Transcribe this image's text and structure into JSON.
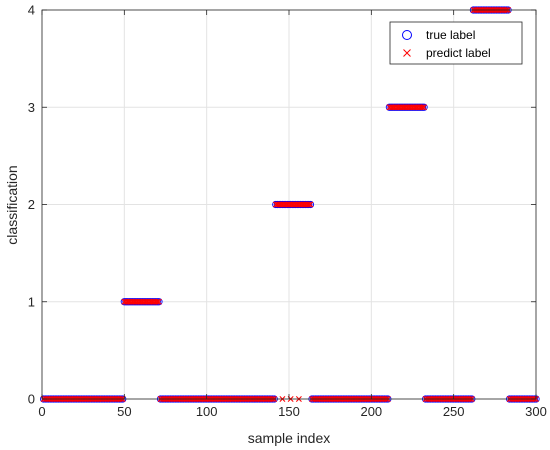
{
  "chart_data": {
    "type": "scatter",
    "xlabel": "sample index",
    "ylabel": "classification",
    "xlim": [
      0,
      300
    ],
    "ylim": [
      0,
      4
    ],
    "x_ticks": [
      0,
      50,
      100,
      150,
      200,
      250,
      300
    ],
    "y_ticks": [
      0,
      1,
      2,
      3,
      4
    ],
    "grid": true,
    "legend_position": "top-right",
    "series": [
      {
        "name": "true label",
        "marker": "circle",
        "color": "#0000ff",
        "segments": [
          {
            "x_start": 1,
            "x_end": 49,
            "y": 0
          },
          {
            "x_start": 50,
            "x_end": 71,
            "y": 1
          },
          {
            "x_start": 72,
            "x_end": 141,
            "y": 0
          },
          {
            "x_start": 142,
            "x_end": 163,
            "y": 2
          },
          {
            "x_start": 164,
            "x_end": 210,
            "y": 0
          },
          {
            "x_start": 211,
            "x_end": 232,
            "y": 3
          },
          {
            "x_start": 233,
            "x_end": 261,
            "y": 0
          },
          {
            "x_start": 262,
            "x_end": 283,
            "y": 4
          },
          {
            "x_start": 284,
            "x_end": 300,
            "y": 0
          }
        ]
      },
      {
        "name": "predict label",
        "marker": "x",
        "color": "#ff0000",
        "segments": [
          {
            "x_start": 1,
            "x_end": 49,
            "y": 0
          },
          {
            "x_start": 50,
            "x_end": 71,
            "y": 1
          },
          {
            "x_start": 72,
            "x_end": 141,
            "y": 0
          },
          {
            "x_start": 142,
            "x_end": 163,
            "y": 2
          },
          {
            "x_start": 164,
            "x_end": 210,
            "y": 0
          },
          {
            "x_start": 211,
            "x_end": 232,
            "y": 3
          },
          {
            "x_start": 233,
            "x_end": 261,
            "y": 0
          },
          {
            "x_start": 262,
            "x_end": 283,
            "y": 4
          },
          {
            "x_start": 284,
            "x_end": 300,
            "y": 0
          }
        ],
        "isolated_points": [
          {
            "x": 146,
            "y": 0
          },
          {
            "x": 151,
            "y": 0
          },
          {
            "x": 156,
            "y": 0
          }
        ]
      }
    ]
  }
}
